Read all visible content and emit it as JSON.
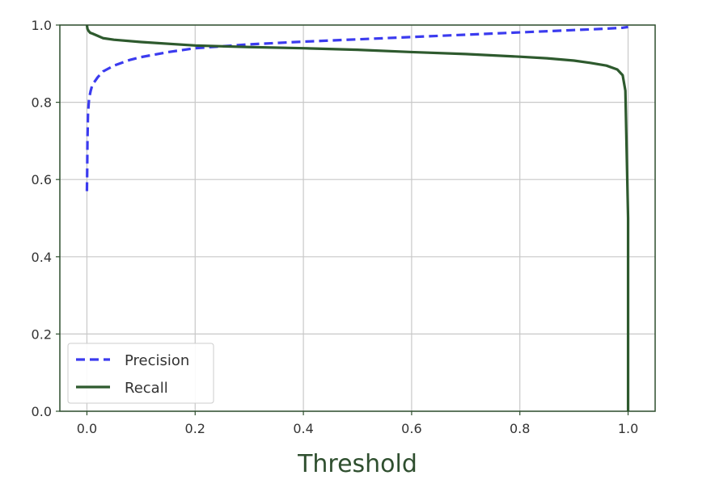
{
  "chart_data": {
    "type": "line",
    "title": "",
    "xlabel": "Threshold",
    "ylabel": "",
    "xlim": [
      -0.05,
      1.05
    ],
    "ylim": [
      0.0,
      1.0
    ],
    "xticks": [
      0.0,
      0.2,
      0.4,
      0.6,
      0.8,
      1.0
    ],
    "xtick_labels": [
      "0.0",
      "0.2",
      "0.4",
      "0.6",
      "0.8",
      "1.0"
    ],
    "yticks": [
      0.0,
      0.2,
      0.4,
      0.6,
      0.8,
      1.0
    ],
    "ytick_labels": [
      "0.0",
      "0.2",
      "0.4",
      "0.6",
      "0.8",
      "1.0"
    ],
    "grid": true,
    "legend_position": "lower-left",
    "series": [
      {
        "name": "Precision",
        "color": "#3b3bef",
        "style": "dashed",
        "x": [
          0.0,
          0.0005,
          0.001,
          0.002,
          0.004,
          0.007,
          0.01,
          0.02,
          0.03,
          0.05,
          0.08,
          0.1,
          0.15,
          0.2,
          0.3,
          0.4,
          0.5,
          0.6,
          0.7,
          0.8,
          0.9,
          0.95,
          0.99,
          1.0
        ],
        "y": [
          0.57,
          0.62,
          0.7,
          0.77,
          0.81,
          0.83,
          0.845,
          0.865,
          0.88,
          0.895,
          0.91,
          0.917,
          0.93,
          0.94,
          0.95,
          0.957,
          0.963,
          0.969,
          0.975,
          0.981,
          0.987,
          0.99,
          0.993,
          0.995
        ]
      },
      {
        "name": "Recall",
        "color": "#2e5a2e",
        "style": "solid",
        "x": [
          0.0,
          0.0005,
          0.001,
          0.003,
          0.006,
          0.01,
          0.02,
          0.03,
          0.05,
          0.1,
          0.2,
          0.3,
          0.4,
          0.5,
          0.6,
          0.7,
          0.8,
          0.85,
          0.9,
          0.93,
          0.96,
          0.98,
          0.99,
          0.995,
          1.0,
          1.0
        ],
        "y": [
          1.0,
          0.995,
          0.99,
          0.985,
          0.98,
          0.978,
          0.972,
          0.966,
          0.962,
          0.956,
          0.947,
          0.943,
          0.94,
          0.936,
          0.93,
          0.925,
          0.918,
          0.914,
          0.908,
          0.902,
          0.895,
          0.885,
          0.87,
          0.83,
          0.5,
          0.0
        ]
      }
    ]
  }
}
